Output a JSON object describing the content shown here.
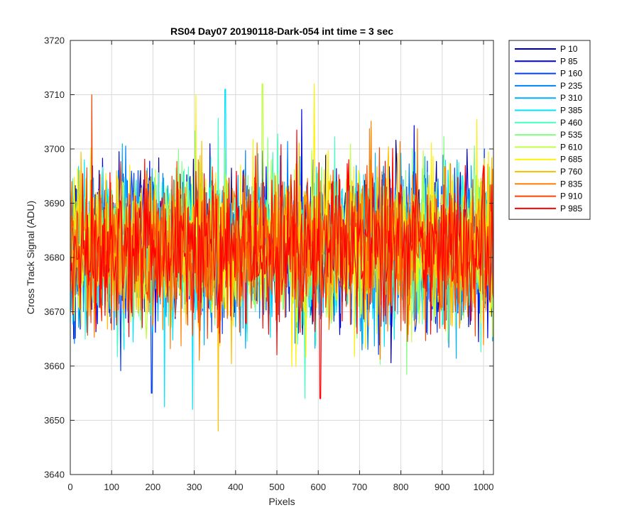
{
  "chart_data": {
    "type": "line",
    "title": "RS04 Day07 20190118-Dark-054 int time = 3 sec",
    "xlabel": "Pixels",
    "ylabel": "Cross Track Signal (ADU)",
    "xlim": [
      0,
      1024
    ],
    "ylim": [
      3640,
      3720
    ],
    "xticks": [
      0,
      100,
      200,
      300,
      400,
      500,
      600,
      700,
      800,
      900,
      1000
    ],
    "yticks": [
      3640,
      3650,
      3660,
      3670,
      3680,
      3690,
      3700,
      3710,
      3720
    ],
    "grid": true,
    "legend_position": "outside-top-right",
    "baseline_mean": 3682,
    "noise_spread": 7,
    "extremes": [
      {
        "series": "P 760",
        "x": 358,
        "y": 3648
      },
      {
        "series": "P 385",
        "x": 296,
        "y": 3652
      },
      {
        "series": "P 460",
        "x": 568,
        "y": 3654
      },
      {
        "series": "P 985",
        "x": 605,
        "y": 3654
      },
      {
        "series": "P 160",
        "x": 197,
        "y": 3655
      },
      {
        "series": "P 910",
        "x": 52,
        "y": 3710
      },
      {
        "series": "P 685",
        "x": 304,
        "y": 3710
      },
      {
        "series": "P 385",
        "x": 375,
        "y": 3711
      },
      {
        "series": "P 610",
        "x": 465,
        "y": 3712
      },
      {
        "series": "P 685",
        "x": 590,
        "y": 3712
      }
    ],
    "series": [
      {
        "name": "P 10",
        "color": "#00008F"
      },
      {
        "name": "P 85",
        "color": "#0000E0"
      },
      {
        "name": "P 160",
        "color": "#0040FF"
      },
      {
        "name": "P 235",
        "color": "#0080FF"
      },
      {
        "name": "P 310",
        "color": "#00B0FF"
      },
      {
        "name": "P 385",
        "color": "#00E5FF"
      },
      {
        "name": "P 460",
        "color": "#40FFC0"
      },
      {
        "name": "P 535",
        "color": "#80FF80"
      },
      {
        "name": "P 610",
        "color": "#C0FF40"
      },
      {
        "name": "P 685",
        "color": "#FFF000"
      },
      {
        "name": "P 760",
        "color": "#FFC000"
      },
      {
        "name": "P 835",
        "color": "#FF8000"
      },
      {
        "name": "P 910",
        "color": "#FF4000"
      },
      {
        "name": "P 985",
        "color": "#FF0000"
      }
    ]
  }
}
